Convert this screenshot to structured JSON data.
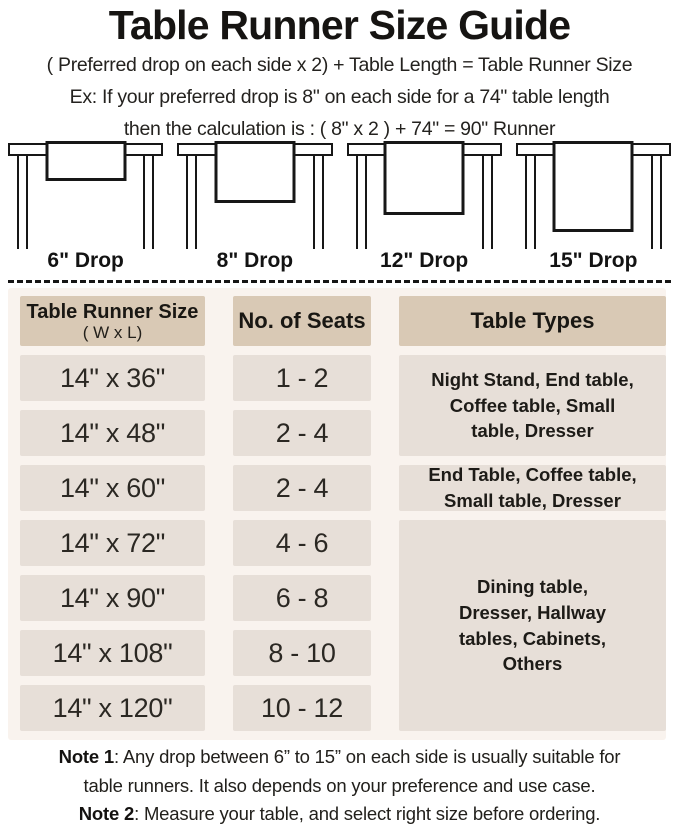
{
  "page": {
    "title": "Table Runner Size Guide",
    "formula_line": "( Preferred drop on each side x 2) + Table Length = Table Runner Size",
    "example_line1": "Ex: If your preferred drop is 8\" on each side for a 74\" table length",
    "example_line2": "then the calculation is : ( 8\" x 2 ) + 74\" = 90\" Runner"
  },
  "figures": [
    {
      "label": "6\" Drop",
      "drop_inches": 6
    },
    {
      "label": "8\" Drop",
      "drop_inches": 8
    },
    {
      "label": "12\" Drop",
      "drop_inches": 12
    },
    {
      "label": "15\" Drop",
      "drop_inches": 15
    }
  ],
  "size_table": {
    "headers": {
      "col1_line1": "Table Runner Size",
      "col1_line2": "( W x L)",
      "col2": "No. of Seats",
      "col3": "Table Types"
    },
    "rows": [
      {
        "size": "14\" x 36\"",
        "seats": "1 - 2"
      },
      {
        "size": "14\" x 48\"",
        "seats": "2 - 4"
      },
      {
        "size": "14\" x 60\"",
        "seats": "2 - 4"
      },
      {
        "size": "14\" x 72\"",
        "seats": "4 - 6"
      },
      {
        "size": "14\" x 90\"",
        "seats": "6 - 8"
      },
      {
        "size": "14\" x 108\"",
        "seats": "8 - 10"
      },
      {
        "size": "14\" x 120\"",
        "seats": "10 - 12"
      }
    ],
    "type_groups": [
      {
        "rows": "1-2",
        "text": "Night Stand, End table,\nCoffee table, Small\ntable, Dresser"
      },
      {
        "rows": "3",
        "text": "End Table, Coffee table,\nSmall table, Dresser"
      },
      {
        "rows": "4-7",
        "text": "Dining table,\nDresser, Hallway\ntables, Cabinets,\nOthers"
      }
    ]
  },
  "notes": [
    {
      "label": "Note 1",
      "text": ": Any drop between 6” to 15” on each side is usually suitable for\ntable runners. It also depends on your preference and use case."
    },
    {
      "label": "Note 2",
      "text": ": Measure your table, and select right size before ordering."
    }
  ],
  "colors": {
    "section_bg": "#f9f3ee",
    "header_bg": "#d9c9b5",
    "cell_bg": "#e7dfd8",
    "text": "#1e1c19",
    "line": "#171717"
  }
}
